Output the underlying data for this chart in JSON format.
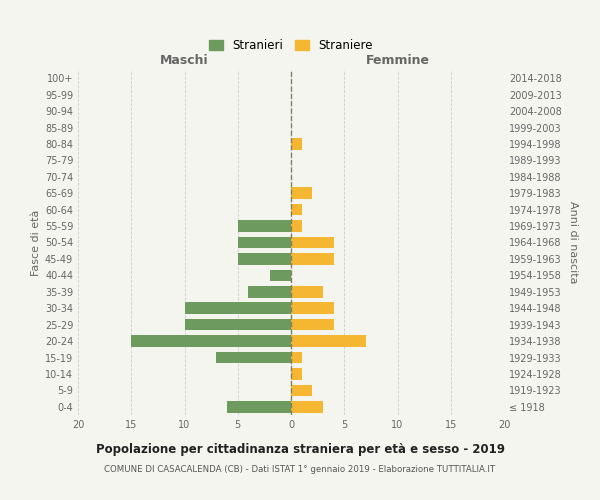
{
  "age_groups": [
    "100+",
    "95-99",
    "90-94",
    "85-89",
    "80-84",
    "75-79",
    "70-74",
    "65-69",
    "60-64",
    "55-59",
    "50-54",
    "45-49",
    "40-44",
    "35-39",
    "30-34",
    "25-29",
    "20-24",
    "15-19",
    "10-14",
    "5-9",
    "0-4"
  ],
  "birth_years": [
    "≤ 1918",
    "1919-1923",
    "1924-1928",
    "1929-1933",
    "1934-1938",
    "1939-1943",
    "1944-1948",
    "1949-1953",
    "1954-1958",
    "1959-1963",
    "1964-1968",
    "1969-1973",
    "1974-1978",
    "1979-1983",
    "1984-1988",
    "1989-1993",
    "1994-1998",
    "1999-2003",
    "2004-2008",
    "2009-2013",
    "2014-2018"
  ],
  "maschi": [
    0,
    0,
    0,
    0,
    0,
    0,
    0,
    0,
    0,
    5,
    5,
    5,
    2,
    4,
    10,
    10,
    15,
    7,
    0,
    0,
    6
  ],
  "femmine": [
    0,
    0,
    0,
    0,
    1,
    0,
    0,
    2,
    1,
    1,
    4,
    4,
    0,
    3,
    4,
    4,
    7,
    1,
    1,
    2,
    3
  ],
  "maschi_color": "#6d9b5e",
  "femmine_color": "#f5b731",
  "bg_color": "#f5f5f0",
  "grid_color": "#cccccc",
  "center_line_color": "#808060",
  "title": "Popolazione per cittadinanza straniera per età e sesso - 2019",
  "subtitle": "COMUNE DI CASACALENDA (CB) - Dati ISTAT 1° gennaio 2019 - Elaborazione TUTTITALIA.IT",
  "xlabel_left": "Maschi",
  "xlabel_right": "Femmine",
  "ylabel_left": "Fasce di età",
  "ylabel_right": "Anni di nascita",
  "legend_maschi": "Stranieri",
  "legend_femmine": "Straniere",
  "xlim": 20
}
